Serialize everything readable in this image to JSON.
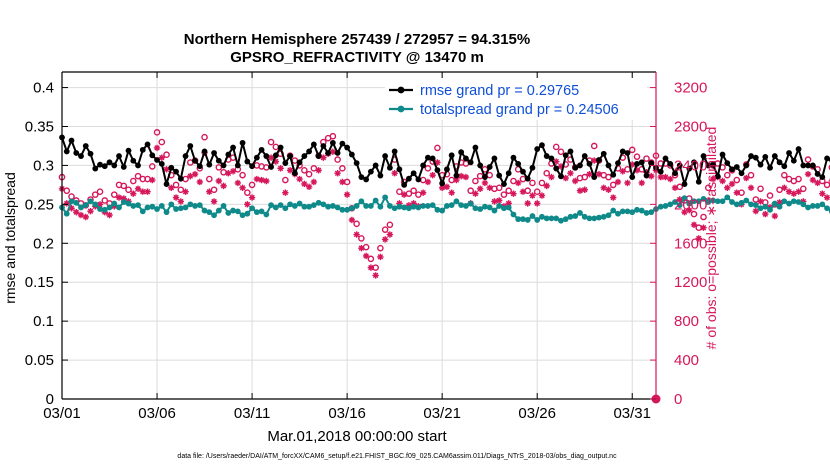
{
  "chart_data": {
    "type": "line",
    "title_line1": "Northern Hemisphere 257439 / 272957 = 94.315%",
    "title_line2": "GPSRO_REFRACTIVITY @ 13470 m",
    "xlabel": "Mar.01,2018 00:00:00 start",
    "ylabel_left": "rmse and totalspread",
    "ylabel_right": "# of obs: o=possible; ∗=assimilated",
    "footer": "data file: /Users/raeder/DAI/ATM_forcXX/CAM6_setup/f.e21.FHIST_BGC.f09_025.CAM6assim.011/Diags_NTrS_2018-03/obs_diag_output.nc",
    "xlim": [
      0,
      31.25
    ],
    "ylim_left": [
      0,
      0.42
    ],
    "ylim_right": [
      0,
      3360
    ],
    "x_ticks": [
      0,
      5,
      10,
      15,
      20,
      25,
      30
    ],
    "x_tick_labels": [
      "03/01",
      "03/06",
      "03/11",
      "03/16",
      "03/21",
      "03/26",
      "03/31"
    ],
    "y_left_ticks": [
      0,
      0.05,
      0.1,
      0.15,
      0.2,
      0.25,
      0.3,
      0.35,
      0.4
    ],
    "y_left_tick_labels": [
      "0",
      "0.05",
      "0.1",
      "0.15",
      "0.2",
      "0.25",
      "0.3",
      "0.35",
      "0.4"
    ],
    "y_right_ticks": [
      0,
      400,
      800,
      1200,
      1600,
      2000,
      2400,
      2800,
      3200
    ],
    "y_right_tick_labels": [
      "0",
      "400",
      "800",
      "1200",
      "1600",
      "2000",
      "2400",
      "2800",
      "3200"
    ],
    "colors": {
      "rmse": "#000000",
      "spread": "#0f8a8a",
      "obs": "#d6175b",
      "legend_text": "#0e4fd8",
      "axis": "#000000",
      "right_axis": "#d6175b"
    },
    "series": [
      {
        "name": "rmse grand pr = 0.29765",
        "key": "rmse",
        "axis": "left",
        "start": 0,
        "step": 0.25,
        "values": [
          0.336,
          0.318,
          0.332,
          0.316,
          0.312,
          0.325,
          0.315,
          0.296,
          0.301,
          0.299,
          0.304,
          0.3,
          0.312,
          0.298,
          0.319,
          0.306,
          0.3,
          0.32,
          0.327,
          0.313,
          0.307,
          0.302,
          0.276,
          0.297,
          0.292,
          0.283,
          0.312,
          0.325,
          0.306,
          0.299,
          0.318,
          0.301,
          0.316,
          0.306,
          0.3,
          0.314,
          0.323,
          0.3,
          0.329,
          0.305,
          0.299,
          0.31,
          0.32,
          0.312,
          0.298,
          0.313,
          0.323,
          0.303,
          0.312,
          0.29,
          0.304,
          0.312,
          0.318,
          0.327,
          0.312,
          0.325,
          0.316,
          0.329,
          0.316,
          0.328,
          0.323,
          0.314,
          0.303,
          0.285,
          0.282,
          0.292,
          0.3,
          0.287,
          0.312,
          0.297,
          0.318,
          0.295,
          0.275,
          0.283,
          0.29,
          0.282,
          0.3,
          0.31,
          0.309,
          0.294,
          0.277,
          0.295,
          0.313,
          0.287,
          0.317,
          0.309,
          0.304,
          0.323,
          0.3,
          0.285,
          0.298,
          0.309,
          0.287,
          0.276,
          0.29,
          0.31,
          0.302,
          0.292,
          0.283,
          0.297,
          0.321,
          0.326,
          0.312,
          0.309,
          0.296,
          0.286,
          0.313,
          0.318,
          0.297,
          0.3,
          0.312,
          0.302,
          0.285,
          0.307,
          0.315,
          0.3,
          0.288,
          0.303,
          0.318,
          0.316,
          0.285,
          0.302,
          0.304,
          0.287,
          0.303,
          0.297,
          0.292,
          0.309,
          0.302,
          0.29,
          0.3,
          0.276,
          0.296,
          0.304,
          0.279,
          0.312,
          0.3,
          0.301,
          0.286,
          0.314,
          0.303,
          0.295,
          0.298,
          0.29,
          0.3,
          0.312,
          0.31,
          0.301,
          0.311,
          0.297,
          0.312,
          0.304,
          0.299,
          0.316,
          0.306,
          0.321,
          0.3,
          0.3,
          0.3,
          0.289,
          0.285,
          0.309,
          0.307,
          0.314,
          0.306,
          0.305,
          0.292,
          0.296,
          0.311,
          0.298,
          0.302,
          0.291,
          0.28,
          0.29,
          0.309,
          0.297,
          0.304,
          0.301,
          0.303,
          0.311,
          0.299,
          0.311,
          0.292,
          0.28,
          0.286,
          0.291,
          0.293,
          0.284,
          0.29,
          0.29,
          0.299,
          0.3,
          0.306,
          0.282,
          0.301,
          0.292,
          0.317,
          0.303,
          0.301,
          0.304,
          0.302,
          0.305,
          0.3,
          0.291,
          0.311,
          0.291,
          0.291,
          0.29,
          0.304,
          0.309,
          0.313,
          0.294,
          0.284,
          0.301,
          0.279,
          0.296,
          0.295,
          0.278,
          0.303,
          0.31,
          0.294,
          0.307,
          0.305,
          0.296,
          0.315,
          0.29,
          0.288,
          0.298,
          0.321,
          0.285,
          0.306,
          0.293,
          0.299,
          0.3,
          0.289,
          0.3,
          0.3,
          0.31,
          0.305,
          0.291,
          0.314,
          0.314,
          0.299,
          0.315,
          0.286,
          0.296,
          0.286,
          0.311,
          0.288,
          0.287,
          0.294,
          0.279,
          0.287,
          0.322
        ]
      },
      {
        "name": "totalspread grand pr = 0.24506",
        "key": "spread",
        "axis": "left",
        "start": 0,
        "step": 0.25,
        "values": [
          0.246,
          0.238,
          0.254,
          0.252,
          0.246,
          0.249,
          0.254,
          0.25,
          0.244,
          0.243,
          0.246,
          0.251,
          0.246,
          0.253,
          0.251,
          0.248,
          0.249,
          0.241,
          0.246,
          0.247,
          0.244,
          0.248,
          0.24,
          0.25,
          0.244,
          0.245,
          0.246,
          0.25,
          0.248,
          0.249,
          0.242,
          0.24,
          0.236,
          0.242,
          0.248,
          0.239,
          0.242,
          0.241,
          0.236,
          0.238,
          0.245,
          0.24,
          0.241,
          0.237,
          0.249,
          0.246,
          0.249,
          0.245,
          0.25,
          0.248,
          0.251,
          0.247,
          0.247,
          0.249,
          0.252,
          0.25,
          0.247,
          0.248,
          0.246,
          0.243,
          0.243,
          0.245,
          0.248,
          0.254,
          0.248,
          0.248,
          0.255,
          0.247,
          0.259,
          0.248,
          0.245,
          0.247,
          0.246,
          0.245,
          0.247,
          0.246,
          0.248,
          0.248,
          0.249,
          0.243,
          0.242,
          0.248,
          0.249,
          0.254,
          0.249,
          0.248,
          0.251,
          0.245,
          0.244,
          0.247,
          0.246,
          0.242,
          0.248,
          0.245,
          0.246,
          0.237,
          0.231,
          0.231,
          0.23,
          0.235,
          0.23,
          0.234,
          0.232,
          0.232,
          0.232,
          0.229,
          0.231,
          0.234,
          0.235,
          0.239,
          0.234,
          0.232,
          0.232,
          0.233,
          0.234,
          0.236,
          0.242,
          0.238,
          0.241,
          0.241,
          0.24,
          0.243,
          0.242,
          0.239,
          0.24,
          0.244,
          0.247,
          0.248,
          0.25,
          0.253,
          0.249,
          0.258,
          0.251,
          0.254,
          0.254,
          0.257,
          0.253,
          0.255,
          0.254,
          0.254,
          0.259,
          0.253,
          0.25,
          0.252,
          0.255,
          0.25,
          0.249,
          0.245,
          0.247,
          0.243,
          0.251,
          0.247,
          0.254,
          0.251,
          0.254,
          0.253,
          0.25,
          0.246,
          0.248,
          0.248,
          0.25,
          0.245,
          0.241,
          0.25,
          0.252,
          0.245,
          0.243,
          0.235,
          0.244,
          0.246,
          0.244,
          0.243,
          0.248,
          0.238,
          0.241,
          0.251,
          0.245,
          0.241,
          0.242,
          0.237,
          0.243,
          0.249,
          0.245,
          0.241,
          0.241,
          0.245,
          0.258,
          0.247,
          0.241,
          0.248,
          0.247,
          0.247,
          0.247,
          0.252,
          0.238,
          0.237,
          0.246,
          0.245,
          0.252,
          0.245,
          0.249,
          0.235,
          0.236,
          0.24,
          0.251,
          0.239,
          0.241,
          0.23,
          0.232,
          0.241,
          0.244,
          0.24,
          0.256,
          0.254,
          0.248,
          0.248,
          0.245,
          0.247,
          0.24,
          0.24,
          0.229,
          0.235,
          0.228,
          0.237,
          0.24,
          0.243,
          0.249,
          0.241,
          0.245,
          0.249,
          0.239,
          0.244,
          0.241,
          0.248,
          0.252,
          0.253,
          0.246,
          0.243,
          0.247,
          0.244,
          0.24,
          0.243,
          0.246,
          0.245,
          0.241,
          0.241,
          0.246,
          0.249,
          0.243,
          0.241,
          0.237,
          0.239
        ]
      }
    ],
    "obs_possible": {
      "axis": "right",
      "start": 0,
      "step": 0.25,
      "values": [
        2280,
        2140,
        2080,
        2040,
        2010,
        1990,
        2050,
        2100,
        2130,
        2040,
        2010,
        2100,
        2200,
        2190,
        2150,
        2240,
        2290,
        2260,
        2260,
        2390,
        2740,
        2640,
        2510,
        2300,
        2200,
        2150,
        2260,
        2430,
        2450,
        2370,
        2690,
        2260,
        2150,
        2380,
        2330,
        2460,
        2480,
        2360,
        2300,
        2120,
        2200,
        2400,
        2390,
        2380,
        2640,
        2590,
        2520,
        2250,
        2500,
        2450,
        2400,
        2350,
        2310,
        2370,
        2500,
        2640,
        2680,
        2700,
        2460,
        2370,
        2230,
        1960,
        1800,
        1650,
        1560,
        1440,
        1350,
        1550,
        1740,
        1790,
        2460,
        2130,
        2230,
        2110,
        2140,
        2100,
        2250,
        2370,
        2440,
        2580,
        2300,
        2310,
        2250,
        2390,
        2430,
        2420,
        2140,
        2240,
        2290,
        2360,
        2300,
        2160,
        2170,
        2100,
        2140,
        2240,
        2360,
        2260,
        2140,
        2220,
        2130,
        2220,
        2320,
        2420,
        2590,
        2540,
        2410,
        2460,
        2380,
        2270,
        2280,
        2450,
        2600,
        2450,
        2300,
        2280,
        2200,
        2370,
        2480,
        2360,
        2560,
        2490,
        2360,
        2470,
        2430,
        2500,
        2420,
        2420,
        2400,
        2300,
        2180,
        2040,
        2060,
        1900,
        1760,
        1870,
        2170,
        2400,
        2420,
        2380,
        2300,
        2350,
        2250,
        2120,
        2410,
        2300,
        2050,
        2160,
        2020,
        2090,
        2000,
        2150,
        2300,
        2260,
        2240,
        2260,
        2160,
        2460,
        2390,
        2360,
        2240,
        2200,
        2380,
        2230,
        2290,
        2450,
        2340,
        2100,
        2070,
        2200,
        1660,
        1460,
        1280,
        1120,
        1020,
        1000,
        1080,
        1220,
        1420,
        1540,
        1780,
        2140,
        1990,
        2090,
        2180,
        2280,
        2400,
        2480,
        2380,
        2520,
        2340,
        2470,
        2430,
        2460,
        2360,
        2480,
        2250,
        2460,
        2410,
        2390,
        2520,
        2480,
        2410,
        2590,
        2440,
        2470,
        2480,
        2560,
        2580,
        2480,
        2450,
        2400,
        2500,
        2410,
        2440,
        2290,
        2270,
        2220,
        2360,
        2490,
        2400,
        2550,
        2600,
        2380,
        2330,
        2400,
        2480,
        2500,
        2560,
        2380,
        2280,
        2230,
        2400,
        2580,
        2300,
        2210,
        2250,
        2320,
        2380,
        2270,
        2190,
        2270,
        2330,
        2280,
        2320,
        2420,
        2400,
        2180,
        2220,
        2220,
        2270,
        2250,
        2330,
        2400,
        2590,
        2400,
        2550,
        2500,
        2520,
        2560,
        2390,
        2480,
        2350
      ]
    },
    "obs_assimilated": {
      "axis": "right",
      "start": 0,
      "step": 0.25,
      "values": [
        2160,
        2010,
        1960,
        1920,
        1890,
        1870,
        1930,
        1980,
        2000,
        1920,
        1890,
        1980,
        2070,
        2060,
        2030,
        2110,
        2160,
        2130,
        2130,
        2250,
        2580,
        2480,
        2360,
        2170,
        2070,
        2030,
        2130,
        2290,
        2310,
        2230,
        2530,
        2130,
        2030,
        2240,
        2190,
        2320,
        2340,
        2220,
        2170,
        2000,
        2070,
        2260,
        2250,
        2240,
        2480,
        2440,
        2370,
        2120,
        2350,
        2310,
        2260,
        2210,
        2180,
        2230,
        2350,
        2480,
        2520,
        2540,
        2320,
        2230,
        2100,
        1840,
        1690,
        1550,
        1470,
        1350,
        1270,
        1460,
        1640,
        1690,
        2320,
        2010,
        2100,
        1990,
        2010,
        1980,
        2120,
        2230,
        2300,
        2430,
        2170,
        2180,
        2120,
        2250,
        2290,
        2280,
        2010,
        2110,
        2160,
        2220,
        2170,
        2030,
        2040,
        1980,
        2010,
        2110,
        2220,
        2130,
        2010,
        2090,
        2010,
        2090,
        2190,
        2280,
        2440,
        2390,
        2270,
        2320,
        2240,
        2140,
        2150,
        2310,
        2450,
        2310,
        2170,
        2150,
        2070,
        2230,
        2340,
        2220,
        2410,
        2350,
        2220,
        2330,
        2290,
        2350,
        2280,
        2280,
        2260,
        2170,
        2050,
        1920,
        1940,
        1790,
        1650,
        1760,
        2040,
        2260,
        2280,
        2240,
        2170,
        2210,
        2120,
        2000,
        2270,
        2170,
        1930,
        2030,
        1900,
        1970,
        1880,
        2020,
        2170,
        2130,
        2110,
        2130,
        2030,
        2310,
        2250,
        2220,
        2110,
        2070,
        2240,
        2100,
        2160,
        2310,
        2200,
        1980,
        1950,
        2070,
        1560,
        1370,
        1200,
        1060,
        960,
        940,
        1020,
        1150,
        1340,
        1450,
        1670,
        2010,
        1870,
        1970,
        2050,
        2140,
        2260,
        2330,
        2240,
        2370,
        2200,
        2330,
        2290,
        2310,
        2220,
        2330,
        2120,
        2310,
        2270,
        2250,
        2370,
        2330,
        2270,
        2440,
        2300,
        2330,
        2330,
        2410,
        2430,
        2330,
        2310,
        2260,
        2350,
        2270,
        2300,
        2160,
        2140,
        2090,
        2220,
        2340,
        2260,
        2400,
        2450,
        2240,
        2190,
        2260,
        2330,
        2350,
        2410,
        2240,
        2150,
        2100,
        2260,
        2430,
        2170,
        2080,
        2120,
        2180,
        2240,
        2140,
        2060,
        2140,
        2190,
        2150,
        2180,
        2280,
        2260,
        2050,
        2090,
        2090,
        2140,
        2120,
        2190,
        2260,
        2440,
        2260,
        2400,
        2350,
        2370,
        2410,
        2250,
        2330,
        2210
      ]
    }
  },
  "legend": {
    "rmse_label": "rmse grand pr = 0.29765",
    "spread_label": "totalspread grand pr = 0.24506"
  }
}
